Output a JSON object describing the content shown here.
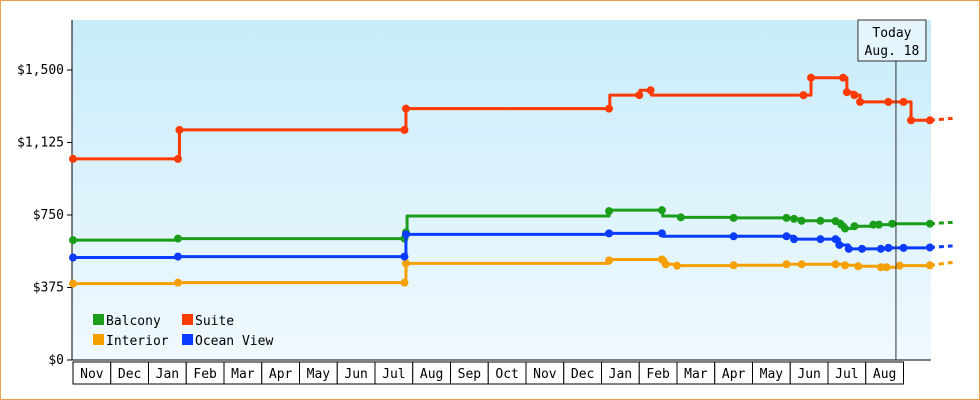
{
  "chart_data": {
    "type": "line",
    "step": true,
    "y_ticks": [
      "$0",
      "$375",
      "$750",
      "$1,125",
      "$1,500"
    ],
    "ylim": [
      0,
      1500
    ],
    "months": [
      "Nov",
      "Dec",
      "Jan",
      "Feb",
      "Mar",
      "Apr",
      "May",
      "Jun",
      "Jul",
      "Aug",
      "Sep",
      "Oct",
      "Nov",
      "Dec",
      "Jan",
      "Feb",
      "Mar",
      "Apr",
      "May",
      "Jun",
      "Jul",
      "Aug"
    ],
    "today": {
      "line1": "Today",
      "line2": "Aug. 18",
      "x": 21.8
    },
    "legend_placement": "bottom-left",
    "series": [
      {
        "name": "Balcony",
        "color": "#1a9e1a",
        "points": [
          [
            0,
            620
          ],
          [
            2.78,
            628
          ],
          [
            8.78,
            628
          ],
          [
            8.82,
            660
          ],
          [
            8.85,
            745
          ],
          [
            14.2,
            770
          ],
          [
            14.22,
            775
          ],
          [
            15.6,
            775
          ],
          [
            15.62,
            745
          ],
          [
            16.1,
            738
          ],
          [
            17.5,
            735
          ],
          [
            18.9,
            735
          ],
          [
            19.1,
            730
          ],
          [
            19.3,
            720
          ],
          [
            19.8,
            720
          ],
          [
            20.2,
            718
          ],
          [
            20.35,
            700
          ],
          [
            20.45,
            680
          ],
          [
            20.7,
            692
          ],
          [
            21.2,
            700
          ],
          [
            21.35,
            700
          ],
          [
            21.7,
            705
          ],
          [
            22.7,
            705
          ]
        ],
        "projected_to": [
          23.3,
          712
        ]
      },
      {
        "name": "Suite",
        "color": "#ff3a00",
        "points": [
          [
            0,
            1040
          ],
          [
            2.78,
            1040
          ],
          [
            2.82,
            1190
          ],
          [
            8.78,
            1190
          ],
          [
            8.82,
            1300
          ],
          [
            14.2,
            1300
          ],
          [
            14.22,
            1370
          ],
          [
            15.0,
            1370
          ],
          [
            15.02,
            1395
          ],
          [
            15.3,
            1395
          ],
          [
            15.32,
            1370
          ],
          [
            19.35,
            1370
          ],
          [
            19.55,
            1460
          ],
          [
            20.4,
            1460
          ],
          [
            20.5,
            1385
          ],
          [
            20.7,
            1370
          ],
          [
            20.85,
            1335
          ],
          [
            21.6,
            1335
          ],
          [
            22.0,
            1335
          ],
          [
            22.2,
            1240
          ],
          [
            22.7,
            1240
          ]
        ],
        "projected_to": [
          23.3,
          1250
        ]
      },
      {
        "name": "Interior",
        "color": "#f5a000",
        "points": [
          [
            0,
            395
          ],
          [
            2.78,
            400
          ],
          [
            8.78,
            400
          ],
          [
            8.82,
            500
          ],
          [
            14.2,
            515
          ],
          [
            14.22,
            520
          ],
          [
            15.6,
            520
          ],
          [
            15.7,
            495
          ],
          [
            16.0,
            488
          ],
          [
            17.5,
            490
          ],
          [
            18.9,
            495
          ],
          [
            19.3,
            495
          ],
          [
            20.2,
            495
          ],
          [
            20.45,
            490
          ],
          [
            20.8,
            485
          ],
          [
            21.4,
            480
          ],
          [
            21.55,
            480
          ],
          [
            21.9,
            488
          ],
          [
            22.7,
            490
          ]
        ],
        "projected_to": [
          23.3,
          505
        ]
      },
      {
        "name": "Ocean View",
        "color": "#0a3cff",
        "points": [
          [
            0,
            530
          ],
          [
            2.78,
            535
          ],
          [
            8.78,
            535
          ],
          [
            8.82,
            650
          ],
          [
            14.2,
            655
          ],
          [
            15.6,
            655
          ],
          [
            15.62,
            640
          ],
          [
            17.5,
            640
          ],
          [
            18.9,
            640
          ],
          [
            19.1,
            625
          ],
          [
            19.8,
            625
          ],
          [
            20.2,
            625
          ],
          [
            20.3,
            595
          ],
          [
            20.55,
            575
          ],
          [
            20.9,
            575
          ],
          [
            21.4,
            575
          ],
          [
            21.6,
            580
          ],
          [
            22.0,
            580
          ],
          [
            22.7,
            582
          ]
        ],
        "projected_to": [
          23.3,
          590
        ]
      }
    ]
  },
  "legend": [
    {
      "name": "Balcony",
      "color": "#1a9e1a"
    },
    {
      "name": "Suite",
      "color": "#ff3a00"
    },
    {
      "name": "Interior",
      "color": "#f5a000"
    },
    {
      "name": "Ocean View",
      "color": "#0a3cff"
    }
  ]
}
